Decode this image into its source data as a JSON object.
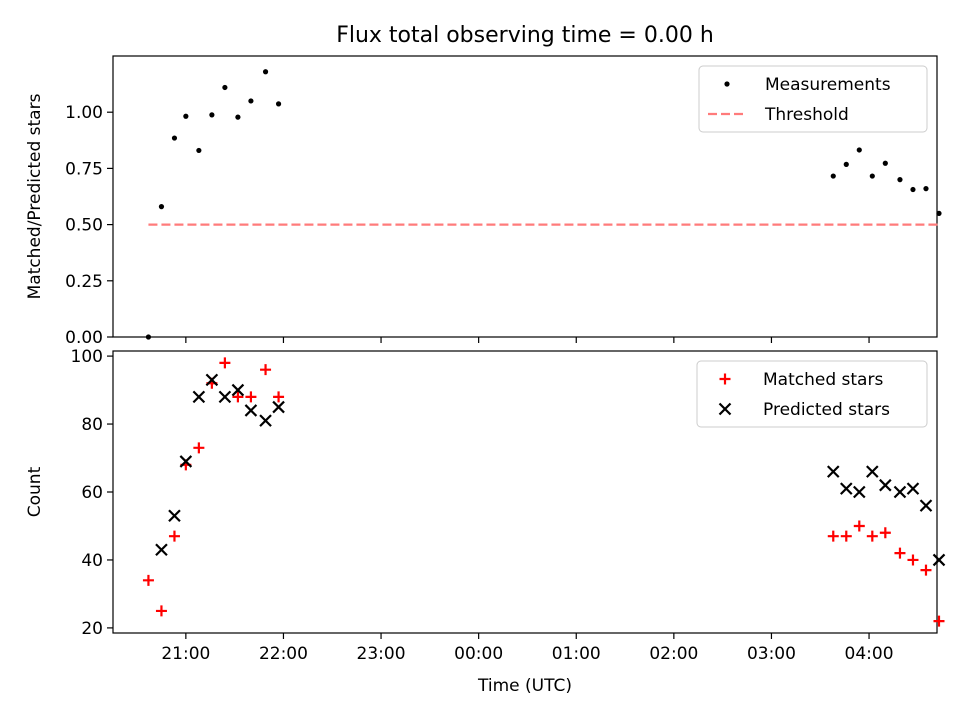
{
  "figure_title": "Flux total observing time = 0.00 h",
  "chart_data": [
    {
      "id": "ratio",
      "type": "scatter",
      "xlabel": "",
      "ylabel": "Matched/Predicted stars",
      "ylim": [
        0,
        1.25
      ],
      "yticks": [
        0.0,
        0.25,
        0.5,
        0.75,
        1.0
      ],
      "ytick_labels": [
        "0.00",
        "0.25",
        "0.50",
        "0.75",
        "1.00"
      ],
      "legend": {
        "position": "top-right",
        "entries": [
          "Measurements",
          "Threshold"
        ]
      },
      "grid": false,
      "series": [
        {
          "name": "Measurements",
          "kind": "dots",
          "color": "#000000",
          "points": [
            [
              "20:37",
              0.0
            ],
            [
              "20:45",
              0.58
            ],
            [
              "20:53",
              0.885
            ],
            [
              "21:00",
              0.982
            ],
            [
              "21:08",
              0.83
            ],
            [
              "21:16",
              0.988
            ],
            [
              "21:24",
              1.11
            ],
            [
              "21:32",
              0.978
            ],
            [
              "21:40",
              1.05
            ],
            [
              "21:49",
              1.18
            ],
            [
              "21:57",
              1.037
            ],
            [
              "03:38",
              0.716
            ],
            [
              "03:46",
              0.768
            ],
            [
              "03:54",
              0.832
            ],
            [
              "04:02",
              0.716
            ],
            [
              "04:10",
              0.773
            ],
            [
              "04:19",
              0.7
            ],
            [
              "04:27",
              0.656
            ],
            [
              "04:35",
              0.66
            ],
            [
              "04:43",
              0.55
            ]
          ]
        },
        {
          "name": "Threshold",
          "kind": "dashed-line",
          "color": "#ff7b7b",
          "points": [
            [
              "20:37",
              0.5
            ],
            [
              "04:43",
              0.5
            ]
          ]
        }
      ]
    },
    {
      "id": "counts",
      "type": "scatter",
      "xlabel": "Time (UTC)",
      "ylabel": "Count",
      "ylim": [
        18.5,
        101.5
      ],
      "yticks": [
        20,
        40,
        60,
        80,
        100
      ],
      "ytick_labels": [
        "20",
        "40",
        "60",
        "80",
        "100"
      ],
      "x_tick_labels": [
        "21:00",
        "22:00",
        "23:00",
        "00:00",
        "01:00",
        "02:00",
        "03:00",
        "04:00"
      ],
      "legend": {
        "position": "top-right",
        "entries": [
          "Matched stars",
          "Predicted stars"
        ]
      },
      "grid": false,
      "series": [
        {
          "name": "Matched stars",
          "kind": "plus",
          "color": "#ff0000",
          "points": [
            [
              "20:37",
              34
            ],
            [
              "20:45",
              25
            ],
            [
              "20:53",
              47
            ],
            [
              "21:00",
              68
            ],
            [
              "21:08",
              73
            ],
            [
              "21:16",
              92
            ],
            [
              "21:24",
              98
            ],
            [
              "21:32",
              88
            ],
            [
              "21:40",
              88
            ],
            [
              "21:49",
              96
            ],
            [
              "21:57",
              88
            ],
            [
              "03:38",
              47
            ],
            [
              "03:46",
              47
            ],
            [
              "03:54",
              50
            ],
            [
              "04:02",
              47
            ],
            [
              "04:10",
              48
            ],
            [
              "04:19",
              42
            ],
            [
              "04:27",
              40
            ],
            [
              "04:35",
              37
            ],
            [
              "04:43",
              22
            ]
          ]
        },
        {
          "name": "Predicted stars",
          "kind": "cross",
          "color": "#000000",
          "points": [
            [
              "20:45",
              43
            ],
            [
              "20:53",
              53
            ],
            [
              "21:00",
              69
            ],
            [
              "21:08",
              88
            ],
            [
              "21:16",
              93
            ],
            [
              "21:24",
              88
            ],
            [
              "21:32",
              90
            ],
            [
              "21:40",
              84
            ],
            [
              "21:49",
              81
            ],
            [
              "21:57",
              85
            ],
            [
              "03:38",
              66
            ],
            [
              "03:46",
              61
            ],
            [
              "03:54",
              60
            ],
            [
              "04:02",
              66
            ],
            [
              "04:10",
              62
            ],
            [
              "04:19",
              60
            ],
            [
              "04:27",
              61
            ],
            [
              "04:35",
              56
            ],
            [
              "04:43",
              40
            ]
          ]
        }
      ]
    }
  ],
  "x_axis": {
    "start": "20:00",
    "end": "05:00",
    "tick_labels": [
      "21:00",
      "22:00",
      "23:00",
      "00:00",
      "01:00",
      "02:00",
      "03:00",
      "04:00"
    ]
  }
}
